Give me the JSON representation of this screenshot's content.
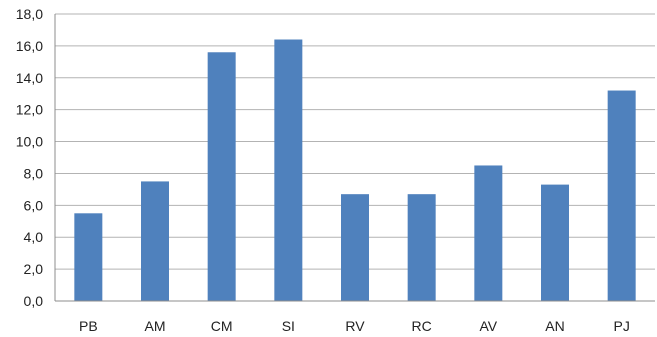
{
  "chart_data": {
    "type": "bar",
    "categories": [
      "PB",
      "AM",
      "CM",
      "SI",
      "RV",
      "RC",
      "AV",
      "AN",
      "PJ"
    ],
    "values": [
      5.5,
      7.5,
      15.6,
      16.4,
      6.7,
      6.7,
      8.5,
      7.3,
      13.2
    ],
    "title": "",
    "xlabel": "",
    "ylabel": "",
    "ylim": [
      0,
      18
    ],
    "y_ticks": [
      "0,0",
      "2,0",
      "4,0",
      "6,0",
      "8,0",
      "10,0",
      "12,0",
      "14,0",
      "16,0",
      "18,0"
    ],
    "grid": true,
    "legend": "none",
    "bar_color": "#4f81bd"
  }
}
